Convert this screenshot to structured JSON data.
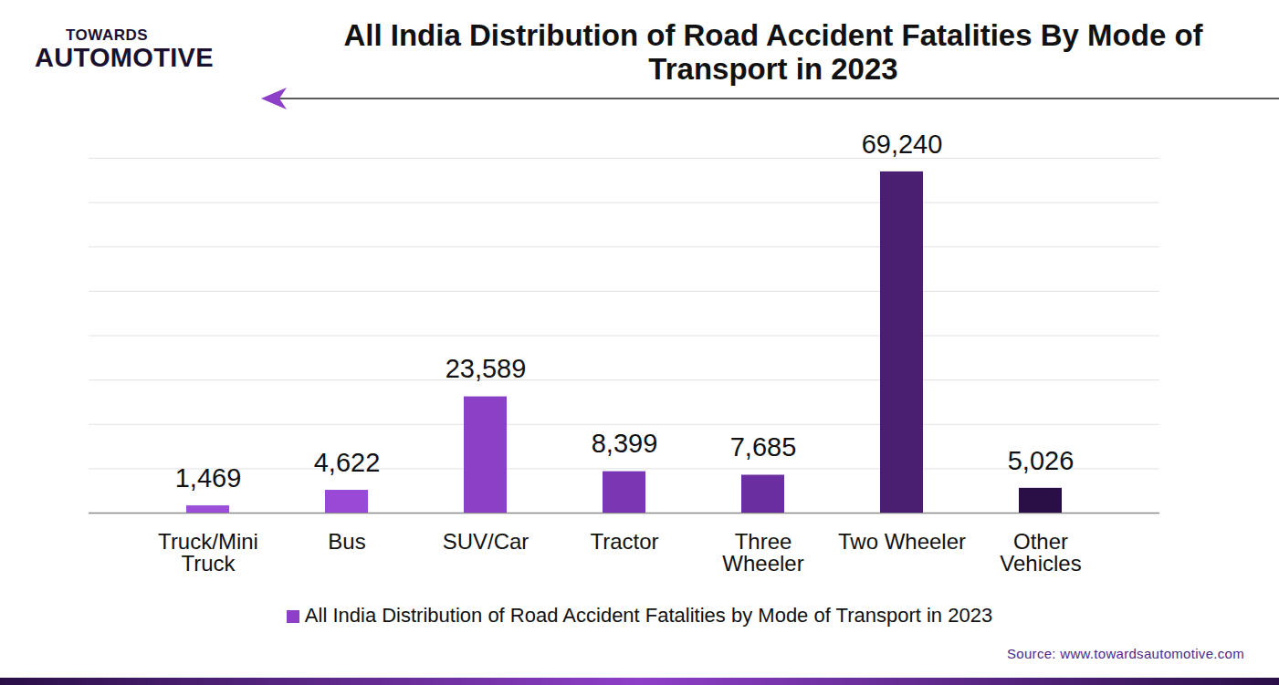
{
  "chart_data": {
    "type": "bar",
    "title": "All India Distribution of Road Accident Fatalities By Mode of Transport in 2023",
    "logo": [
      "TOWARDS",
      "AUTOMOTIVE"
    ],
    "source": "Source: www.towardsautomotive.com",
    "categories": [
      "Truck/Mini Truck",
      "Bus",
      "SUV/Car",
      "Tractor",
      "Three Wheeler",
      "Two Wheeler",
      "Other Vehicles"
    ],
    "series": [
      {
        "name": "All India Distribution of Road Accident Fatalities by Mode of Transport in 2023",
        "color": "#8e3fc8",
        "values": [
          1469,
          4622,
          23589,
          8399,
          7685,
          69240,
          5026
        ],
        "value_labels": [
          "1,469",
          "4,622",
          "23,589",
          "8,399",
          "7,685",
          "69,240",
          "5,026"
        ],
        "colors": [
          "#9b4fd8",
          "#9a49d6",
          "#8c40c6",
          "#7b36b3",
          "#6a2ea0",
          "#4a1f72",
          "#2a0f47"
        ]
      }
    ],
    "ylim": [
      0,
      72000
    ],
    "yticks": [
      0,
      9000,
      18000,
      27000,
      36000,
      45000,
      54000,
      63000,
      72000
    ],
    "grid": true,
    "data_labels": true,
    "tick_labels": "x",
    "legend": "bottom"
  }
}
